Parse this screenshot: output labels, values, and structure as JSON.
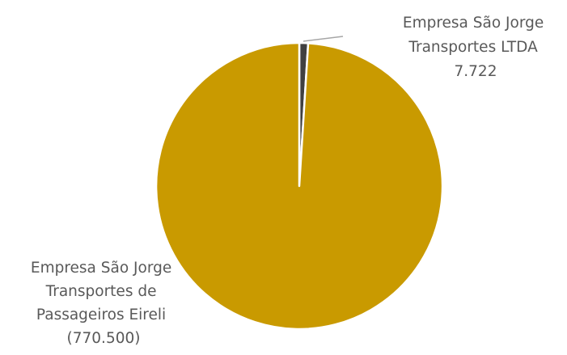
{
  "chart_data": {
    "type": "pie",
    "title": "",
    "legend": "none",
    "categories": [
      "Empresa São Jorge Transportes LTDA",
      "Empresa São Jorge Transportes de Passageiros Eireli"
    ],
    "values": [
      7722,
      770500
    ],
    "colors": [
      "#404040",
      "#c99a00"
    ],
    "data_labels": [
      {
        "category_lines": [
          "Empresa São Jorge",
          "Transportes LTDA"
        ],
        "value_text": "7.722"
      },
      {
        "category_lines": [
          "Empresa São Jorge",
          "Transportes  de",
          "Passageiros Eireli"
        ],
        "value_text": "(770.500)"
      }
    ]
  }
}
